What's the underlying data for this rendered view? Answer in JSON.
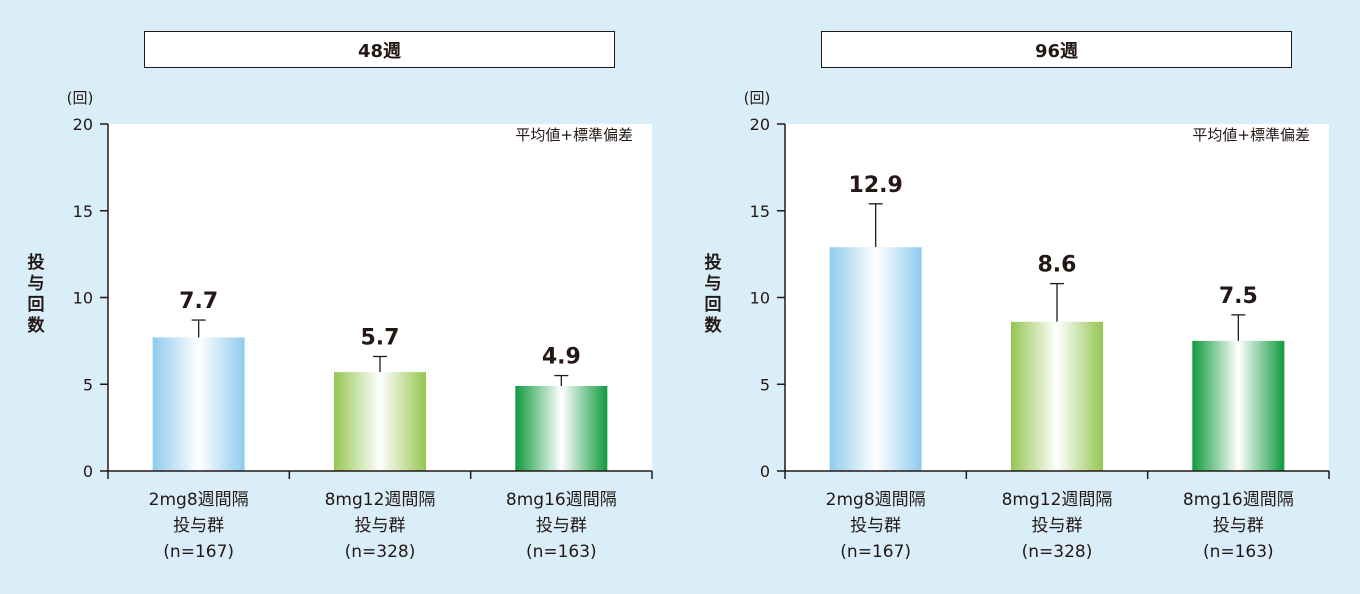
{
  "chart_data": [
    {
      "type": "bar",
      "title": "48週",
      "unit": "(回)",
      "ylabel": "投与回数",
      "note": "平均値+標準偏差",
      "ylim": [
        0,
        20
      ],
      "yticks": [
        "0",
        "5",
        "10",
        "15",
        "20"
      ],
      "categories": [
        [
          "2mg8週間隔",
          "投与群",
          "(n=167)"
        ],
        [
          "8mg12週間隔",
          "投与群",
          "(n=328)"
        ],
        [
          "8mg16週間隔",
          "投与群",
          "(n=163)"
        ]
      ],
      "values": [
        7.7,
        5.7,
        4.9
      ],
      "error_upper": [
        8.7,
        6.6,
        5.5
      ],
      "value_labels": [
        "7.7",
        "5.7",
        "4.9"
      ],
      "colors": [
        "#8fcbee",
        "#95c652",
        "#0f9a3d"
      ]
    },
    {
      "type": "bar",
      "title": "96週",
      "unit": "(回)",
      "ylabel": "投与回数",
      "note": "平均値+標準偏差",
      "ylim": [
        0,
        20
      ],
      "yticks": [
        "0",
        "5",
        "10",
        "15",
        "20"
      ],
      "categories": [
        [
          "2mg8週間隔",
          "投与群",
          "(n=167)"
        ],
        [
          "8mg12週間隔",
          "投与群",
          "(n=328)"
        ],
        [
          "8mg16週間隔",
          "投与群",
          "(n=163)"
        ]
      ],
      "values": [
        12.9,
        8.6,
        7.5
      ],
      "error_upper": [
        15.4,
        10.8,
        9.0
      ],
      "value_labels": [
        "12.9",
        "8.6",
        "7.5"
      ],
      "colors": [
        "#8fcbee",
        "#95c652",
        "#0f9a3d"
      ]
    }
  ]
}
